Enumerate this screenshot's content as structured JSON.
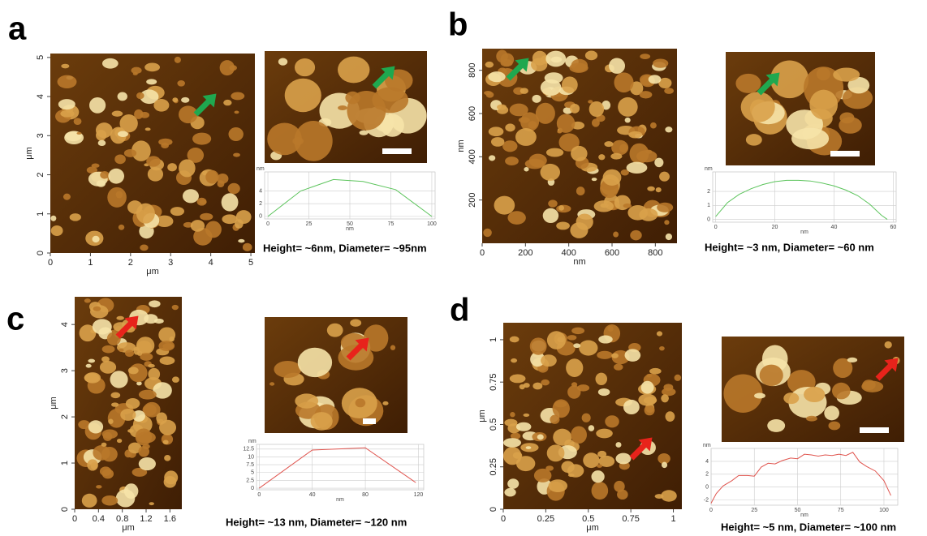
{
  "panels": [
    {
      "label": "a",
      "image": {
        "xlim": [
          0,
          5.1
        ],
        "ylim": [
          0,
          5.1
        ],
        "xticks": [
          0,
          1,
          2,
          3,
          4,
          5
        ],
        "yticks": [
          0,
          1,
          2,
          3,
          4,
          5
        ],
        "x_label": "μm",
        "y_label": "μm"
      },
      "caption": "Height= ~6nm, Diameter= ~95nm"
    },
    {
      "label": "b",
      "image": {
        "xlim": [
          0,
          900
        ],
        "ylim": [
          0,
          900
        ],
        "xticks": [
          0,
          200,
          400,
          600,
          800
        ],
        "yticks": [
          200,
          400,
          600,
          800
        ],
        "x_label": "nm",
        "y_label": "nm"
      },
      "caption": "Height= ~3 nm, Diameter= ~60 nm"
    },
    {
      "label": "c",
      "image": {
        "xlim": [
          0,
          1.8
        ],
        "ylim": [
          0,
          4.6
        ],
        "xticks": [
          0,
          0.4,
          0.8,
          1.2,
          1.6
        ],
        "yticks": [
          0,
          1,
          2,
          3,
          4
        ],
        "x_label": "μm",
        "y_label": "μm"
      },
      "caption": "Height= ~13 nm, Diameter= ~120 nm"
    },
    {
      "label": "d",
      "image": {
        "xlim": [
          0,
          1.05
        ],
        "ylim": [
          0,
          1.1
        ],
        "xticks": [
          0,
          0.25,
          0.5,
          0.75,
          1
        ],
        "yticks": [
          0,
          0.25,
          0.5,
          0.75,
          1
        ],
        "x_label": "μm",
        "y_label": "μm"
      },
      "caption": "Height= ~5 nm, Diameter= ~100 nm"
    }
  ],
  "chart_data": [
    {
      "type": "line",
      "x_label": "nm",
      "y_label": "nm",
      "color": "#5cc45c",
      "x": [
        0,
        20,
        40,
        58,
        78,
        100
      ],
      "values": [
        0,
        4,
        5.8,
        5.5,
        4.2,
        0
      ],
      "xlim": [
        -2,
        102
      ],
      "ylim": [
        -0.4,
        7
      ],
      "xticks": [
        0,
        25,
        50,
        75,
        100
      ],
      "yticks": [
        0,
        2,
        4
      ]
    },
    {
      "type": "line",
      "x_label": "nm",
      "y_label": "nm",
      "color": "#5cc45c",
      "x": [
        0,
        4,
        8,
        12,
        16,
        20,
        24,
        28,
        32,
        36,
        40,
        44,
        48,
        52,
        56,
        58
      ],
      "values": [
        0.2,
        1.2,
        1.8,
        2.2,
        2.5,
        2.7,
        2.8,
        2.8,
        2.75,
        2.6,
        2.4,
        2.1,
        1.7,
        1.1,
        0.3,
        0
      ],
      "xlim": [
        -1,
        61
      ],
      "ylim": [
        -0.2,
        3.4
      ],
      "xticks": [
        0,
        20,
        40,
        60
      ],
      "yticks": [
        0,
        1,
        2
      ]
    },
    {
      "type": "line",
      "x_label": "nm",
      "y_label": "nm",
      "color": "#e0554f",
      "x": [
        0,
        40,
        80,
        118
      ],
      "values": [
        0,
        12.2,
        12.9,
        1.8
      ],
      "xlim": [
        -2,
        124
      ],
      "ylim": [
        -0.5,
        14
      ],
      "xticks": [
        0,
        40,
        80,
        120
      ],
      "yticks": [
        0,
        2.5,
        5,
        7.5,
        10,
        12.5
      ]
    },
    {
      "type": "line",
      "x_label": "nm",
      "y_label": "nm",
      "color": "#e0554f",
      "x": [
        0,
        3,
        7,
        12,
        16,
        21,
        25,
        29,
        33,
        37,
        41,
        46,
        50,
        54,
        58,
        62,
        66,
        70,
        74,
        78,
        82,
        86,
        90,
        95,
        100,
        104
      ],
      "values": [
        -2.5,
        -1,
        0.2,
        1,
        1.8,
        1.8,
        1.7,
        3.1,
        3.7,
        3.6,
        4.1,
        4.5,
        4.4,
        5.1,
        5,
        4.8,
        5,
        4.9,
        5.1,
        4.9,
        5.4,
        3.9,
        3.2,
        2.5,
        1,
        -1.3
      ],
      "xlim": [
        0,
        108
      ],
      "ylim": [
        -2.8,
        6
      ],
      "xticks": [
        0,
        25,
        50,
        75,
        100
      ],
      "yticks": [
        -2,
        0,
        2,
        4
      ]
    }
  ]
}
